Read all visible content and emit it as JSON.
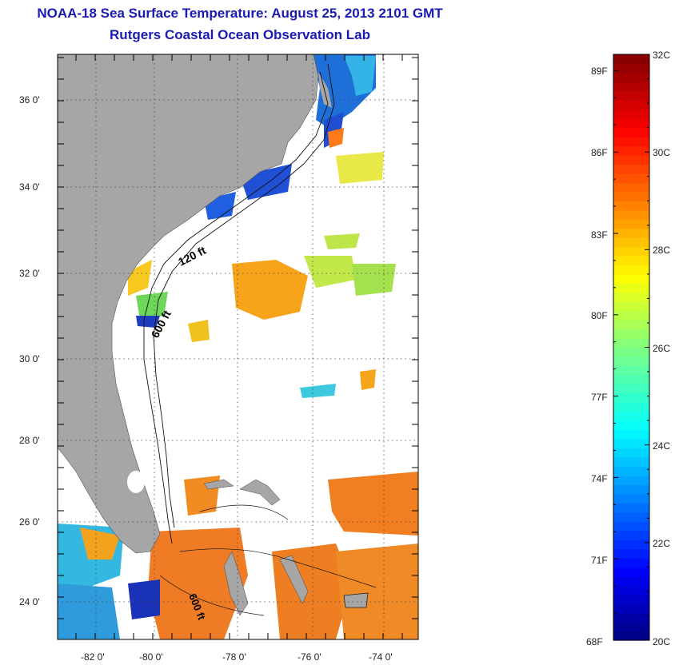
{
  "header": {
    "title": "NOAA-18 Sea Surface Temperature:  August 25, 2013 2101 GMT",
    "subtitle": "Rutgers Coastal Ocean Observation Lab"
  },
  "map": {
    "lat_labels": [
      "36 0'",
      "34 0'",
      "32 0'",
      "30 0'",
      "28 0'",
      "26 0'",
      "24 0'"
    ],
    "lon_labels": [
      "-82 0'",
      "-80 0'",
      "-78 0'",
      "-76 0'",
      "-74 0'"
    ],
    "contour_labels": [
      "120 ft",
      "600 ft",
      "600 ft"
    ],
    "colors": {
      "land": "#a6a6a6",
      "ocean_nodata": "#ffffff"
    }
  },
  "colorbar": {
    "fahrenheit_labels": [
      "89F",
      "86F",
      "83F",
      "80F",
      "77F",
      "74F",
      "71F",
      "68F"
    ],
    "celsius_labels": [
      "32C",
      "30C",
      "28C",
      "26C",
      "24C",
      "22C",
      "20C"
    ],
    "range_c": [
      20,
      32
    ],
    "range_f": [
      68,
      89.6
    ]
  }
}
